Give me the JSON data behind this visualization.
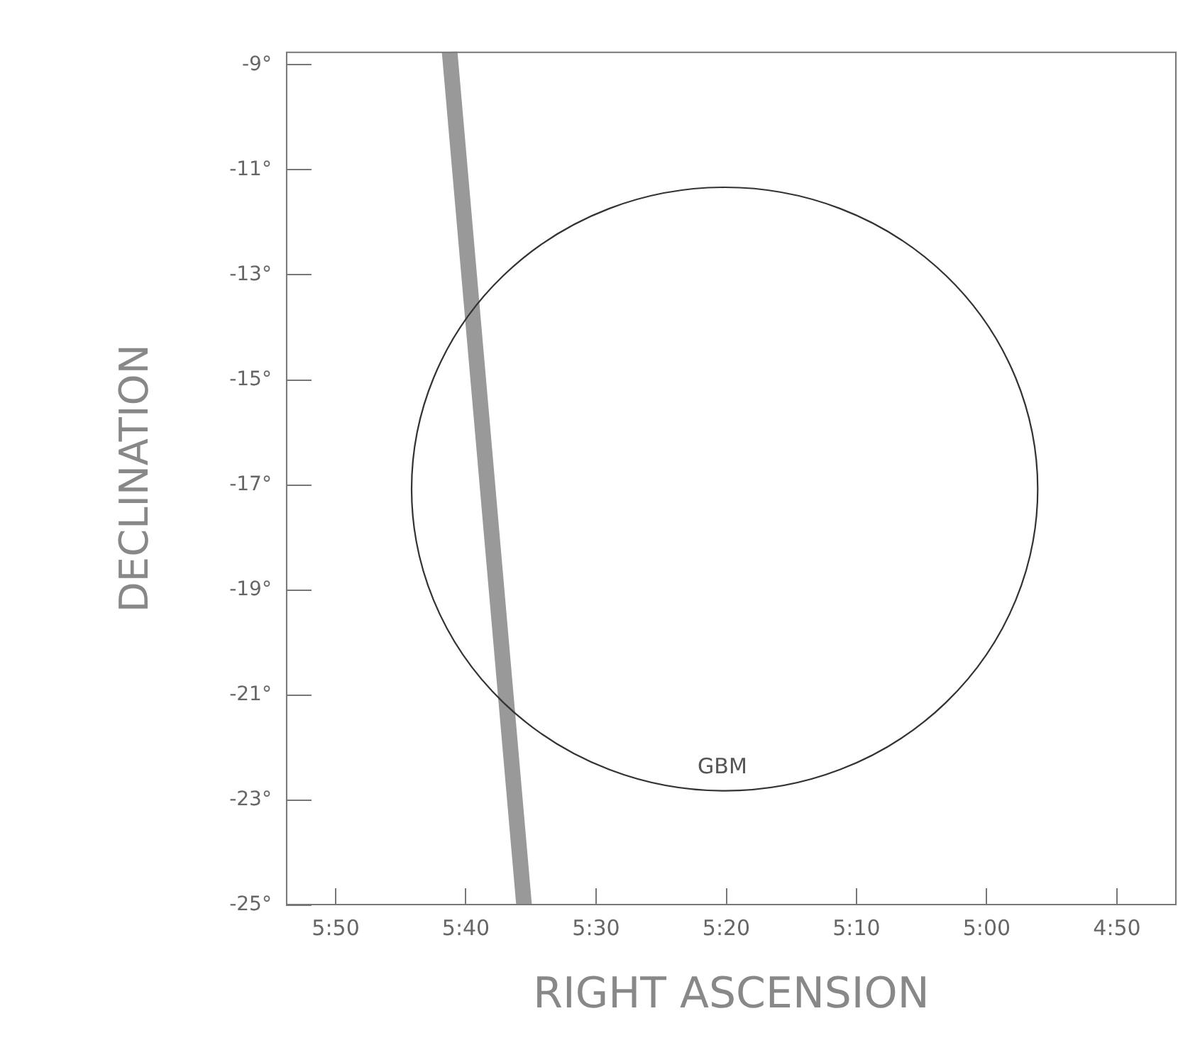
{
  "chart_data": {
    "type": "line",
    "xlabel": "RIGHT ASCENSION",
    "ylabel": "DECLINATION",
    "xlim": [
      5.897,
      4.757
    ],
    "ylim": [
      -25,
      -8.75
    ],
    "xticks": [
      {
        "value": 5.8333,
        "label": "5:50"
      },
      {
        "value": 5.6667,
        "label": "5:40"
      },
      {
        "value": 5.5,
        "label": "5:30"
      },
      {
        "value": 5.3333,
        "label": "5:20"
      },
      {
        "value": 5.1667,
        "label": "5:10"
      },
      {
        "value": 5,
        "label": "5:00"
      },
      {
        "value": 4.8333,
        "label": "4:50"
      }
    ],
    "yticks": [
      {
        "value": -25,
        "label": "-25°"
      },
      {
        "value": -23,
        "label": "-23°"
      },
      {
        "value": -21,
        "label": "-21°"
      },
      {
        "value": -19,
        "label": "-19°"
      },
      {
        "value": -17,
        "label": "-17°"
      },
      {
        "value": -15,
        "label": "-15°"
      },
      {
        "value": -13,
        "label": "-13°"
      },
      {
        "value": -11,
        "label": "-11°"
      },
      {
        "value": -9,
        "label": "-9°"
      }
    ],
    "series": [
      {
        "color": "#999999",
        "x": [
          5.6875,
          5.6391,
          5.5922
        ],
        "values": [
          -8.75,
          -17,
          -25
        ]
      }
    ],
    "annotations": [
      "GBM"
    ],
    "grid": false,
    "legend": false,
    "marker": "none",
    "line_style": "solid"
  }
}
